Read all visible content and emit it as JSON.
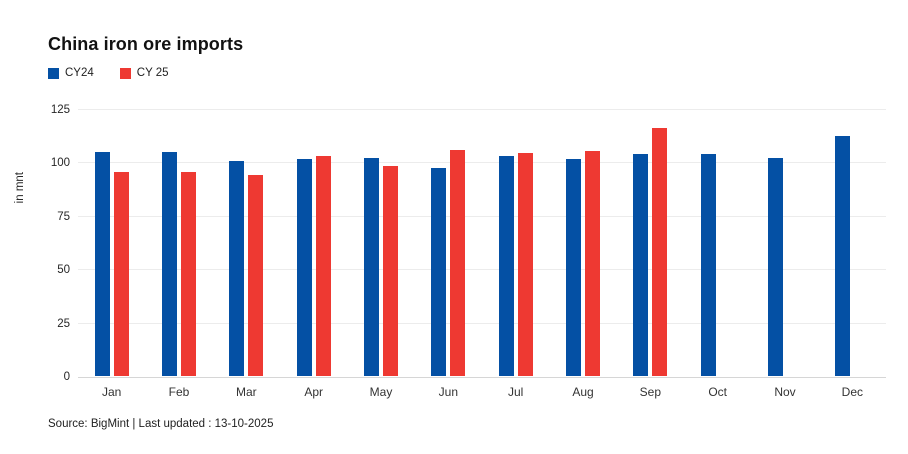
{
  "header": {
    "title": "China iron ore imports"
  },
  "legend": {
    "items": [
      {
        "label": "CY24",
        "color": "#0450a4"
      },
      {
        "label": "CY 25",
        "color": "#ee3932"
      }
    ]
  },
  "y_axis": {
    "title": "in mnt"
  },
  "footer": {
    "source_text": "Source: BigMint | Last updated : 13-10-2025"
  },
  "chart_data": {
    "type": "bar",
    "title": "China iron ore imports",
    "xlabel": "",
    "ylabel": "in mnt",
    "categories": [
      "Jan",
      "Feb",
      "Mar",
      "Apr",
      "May",
      "Jun",
      "Jul",
      "Aug",
      "Sep",
      "Oct",
      "Nov",
      "Dec"
    ],
    "series": [
      {
        "name": "CY24",
        "color": "#0450a4",
        "values": [
          104.7,
          104.7,
          100.7,
          101.8,
          102.0,
          97.6,
          102.9,
          101.4,
          104.1,
          103.8,
          101.9,
          112.5
        ]
      },
      {
        "name": "CY 25",
        "color": "#ee3932",
        "values": [
          95.7,
          95.6,
          94.0,
          103.1,
          98.1,
          106.0,
          104.6,
          105.2,
          116.3,
          null,
          null,
          null
        ]
      }
    ],
    "ylim": [
      0,
      125
    ],
    "yticks": [
      0,
      25,
      50,
      75,
      100,
      125
    ],
    "grid": true,
    "legend_position": "top-left",
    "gridline_color": "#ececec",
    "axis_line_color": "#d6d6d6"
  }
}
